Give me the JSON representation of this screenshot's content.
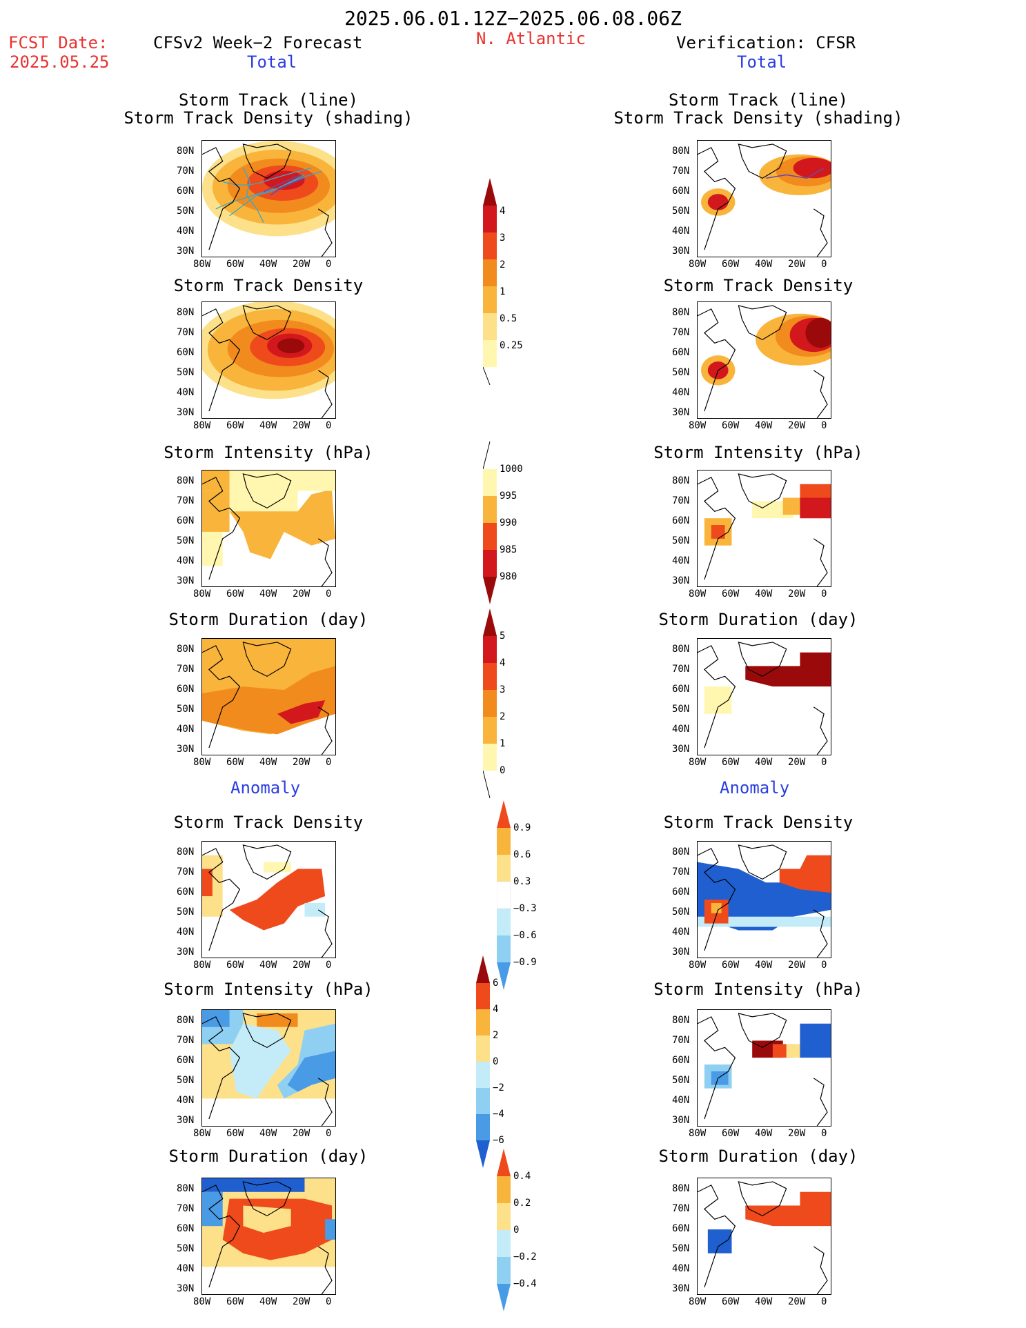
{
  "header": {
    "period": "2025.06.01.12Z−2025.06.08.06Z",
    "fcst_label": "FCST Date:",
    "fcst_date": "2025.05.25",
    "left_title": "CFSv2 Week−2 Forecast",
    "region": "N. Atlantic",
    "right_title": "Verification: CFSR",
    "total_label": "Total",
    "anomaly_label": "Anomaly"
  },
  "panel_titles": {
    "track": [
      "Storm Track (line)",
      "Storm Track Density (shading)"
    ],
    "density": "Storm Track Density",
    "intensity": "Storm Intensity (hPa)",
    "duration": "Storm Duration (day)"
  },
  "axes": {
    "lat_ticks": [
      "80N",
      "70N",
      "60N",
      "50N",
      "40N",
      "30N"
    ],
    "lon_ticks": [
      "80W",
      "60W",
      "40W",
      "20W",
      "0"
    ]
  },
  "colorbars": {
    "density_total": [
      "4",
      "3",
      "2",
      "1",
      "0.5",
      "0.25"
    ],
    "intensity_total": [
      "1000",
      "995",
      "990",
      "985",
      "980"
    ],
    "duration_total": [
      "5",
      "4",
      "3",
      "2",
      "1",
      "0"
    ],
    "density_anom": [
      "0.9",
      "0.6",
      "0.3",
      "−0.3",
      "−0.6",
      "−0.9"
    ],
    "intensity_anom": [
      "6",
      "4",
      "2",
      "0",
      "−2",
      "−4",
      "−6"
    ],
    "duration_anom": [
      "0.4",
      "0.2",
      "0",
      "−0.2",
      "−0.4"
    ]
  },
  "colors": {
    "light_yellow": "#fff7b0",
    "yellow": "#fde08a",
    "gold": "#f9b53b",
    "orange": "#f28b1e",
    "red_orange": "#ef4a1b",
    "red": "#d2181c",
    "dark_red": "#9b0a0a",
    "light_blue": "#c4ecf8",
    "sky_blue": "#8fd0f2",
    "blue": "#4a9be6",
    "dark_blue": "#1f5fd0",
    "track_line": "#3aa8c8"
  }
}
